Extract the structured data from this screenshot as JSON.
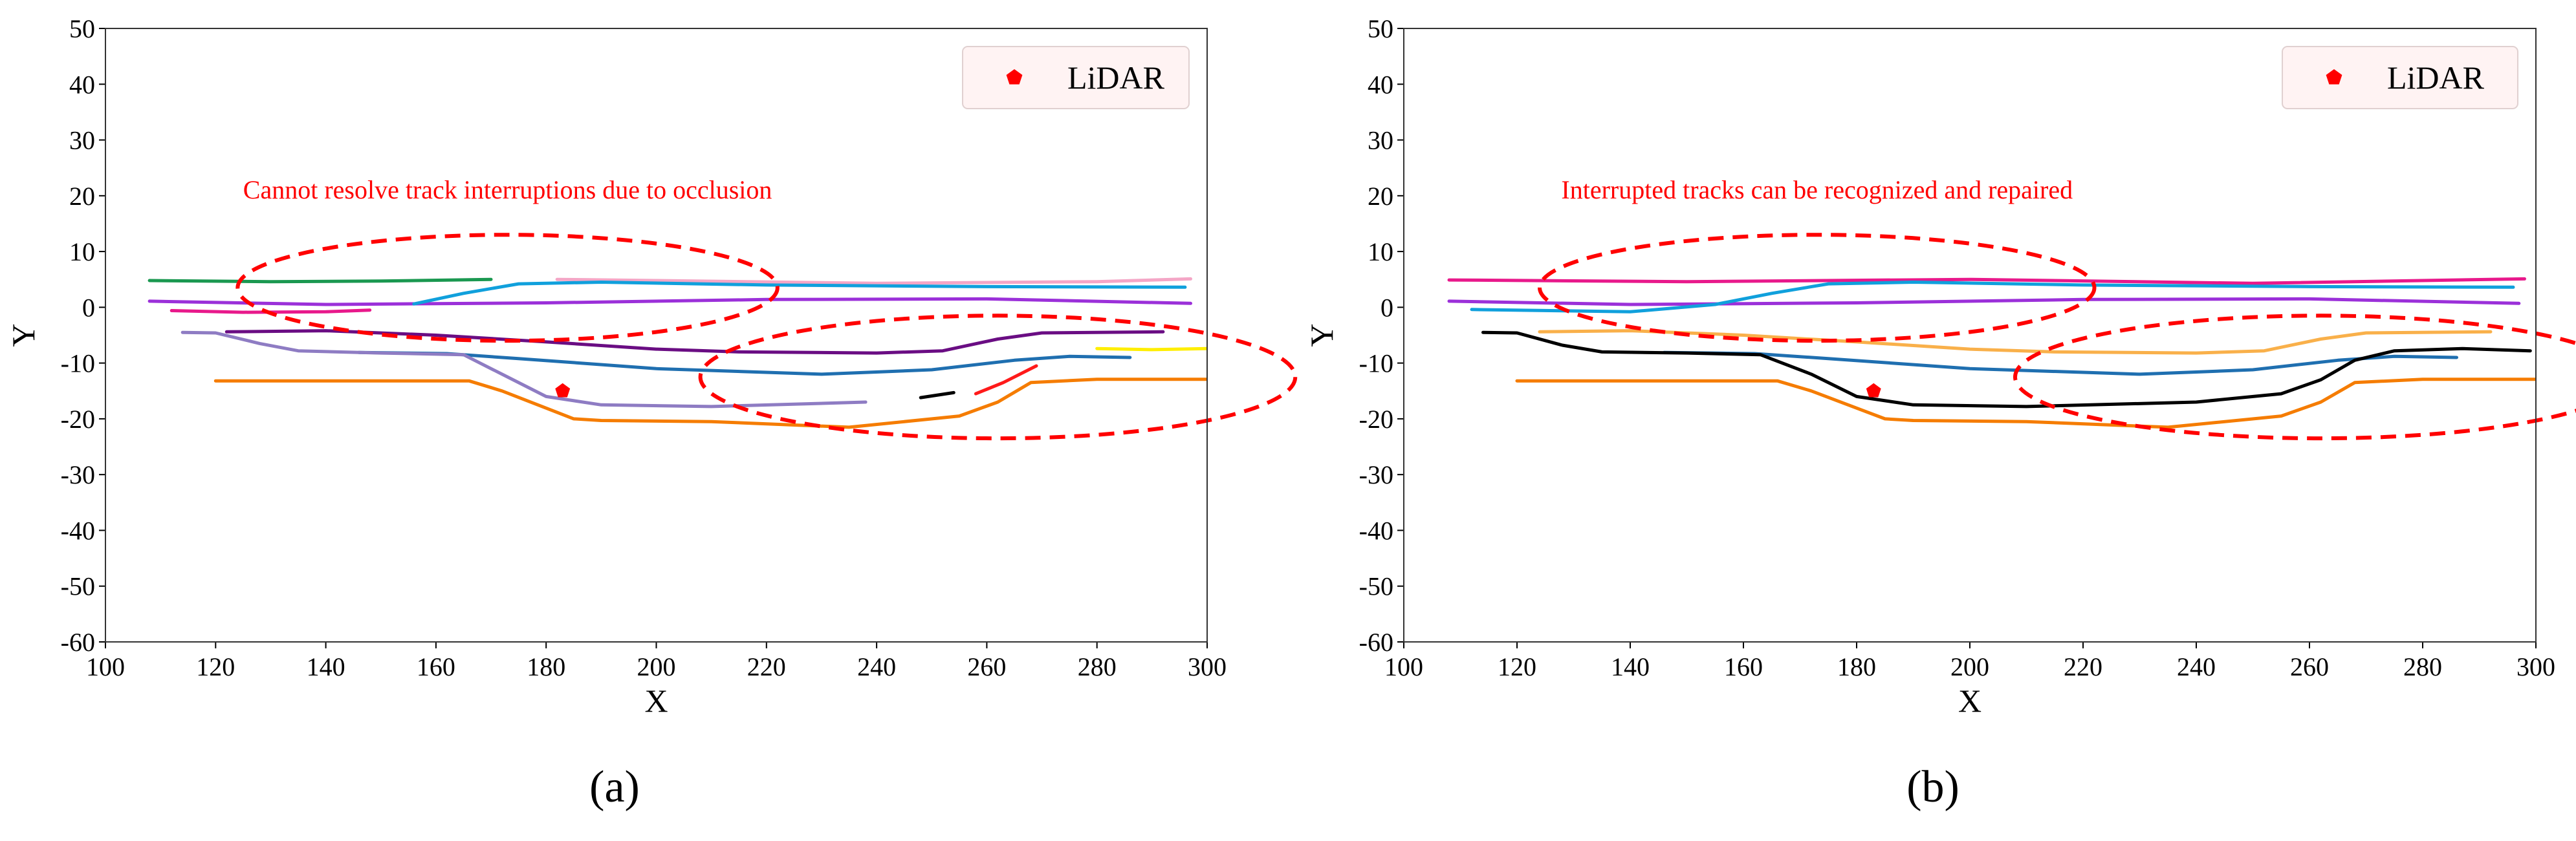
{
  "chart_data": [
    {
      "type": "line",
      "panel_label": "(a)",
      "xlabel": "X",
      "ylabel": "Y",
      "xlim": [
        100,
        300
      ],
      "ylim": [
        -60,
        50
      ],
      "xticks": [
        100,
        120,
        140,
        160,
        180,
        200,
        220,
        240,
        260,
        280,
        300
      ],
      "yticks": [
        50,
        40,
        30,
        20,
        10,
        0,
        -10,
        -20,
        -30,
        -40,
        -50,
        -60
      ],
      "legend": {
        "label": "LiDAR",
        "marker": "pentagon",
        "color": "#ff0000",
        "placement": "top-right"
      },
      "annotation": {
        "text": "Cannot resolve track interruptions due to occlusion",
        "color": "#ff0000",
        "x": 173,
        "y": 19.5
      },
      "lidar": {
        "x": 183,
        "y": -15
      },
      "ellipses": [
        {
          "cx": 173,
          "cy": 3.5,
          "rx": 49,
          "ry": 9.5,
          "color": "#ff0000"
        },
        {
          "cx": 262,
          "cy": -12.5,
          "rx": 54,
          "ry": 11,
          "color": "#ff0000"
        }
      ],
      "series": [
        {
          "name": "green",
          "color": "#1a9850",
          "x": [
            108,
            130,
            150,
            170
          ],
          "y": [
            4.8,
            4.6,
            4.7,
            5.0
          ]
        },
        {
          "name": "magenta-short",
          "color": "#e8198b",
          "x": [
            112,
            125,
            140,
            148
          ],
          "y": [
            -0.6,
            -0.9,
            -0.8,
            -0.5
          ]
        },
        {
          "name": "violet-long",
          "color": "#9b30d9",
          "x": [
            108,
            140,
            180,
            220,
            260,
            297
          ],
          "y": [
            1.1,
            0.5,
            0.8,
            1.4,
            1.5,
            0.7
          ]
        },
        {
          "name": "pink",
          "color": "#f4a6c6",
          "x": [
            182,
            200,
            240,
            280,
            297
          ],
          "y": [
            5.0,
            4.8,
            4.3,
            4.6,
            5.1
          ]
        },
        {
          "name": "cyan",
          "color": "#10a0dc",
          "x": [
            156,
            165,
            175,
            190,
            220,
            260,
            296
          ],
          "y": [
            0.6,
            2.5,
            4.2,
            4.5,
            4.0,
            3.7,
            3.6
          ]
        },
        {
          "name": "purple",
          "color": "#6a0d83",
          "x": [
            122,
            140,
            160,
            180,
            200,
            215,
            240,
            252,
            262,
            270,
            292
          ],
          "y": [
            -4.4,
            -4.2,
            -5.0,
            -6.2,
            -7.5,
            -8.0,
            -8.2,
            -7.8,
            -5.7,
            -4.6,
            -4.4
          ]
        },
        {
          "name": "blue",
          "color": "#1f6fb0",
          "x": [
            146,
            162,
            175,
            200,
            230,
            250,
            265,
            275,
            286
          ],
          "y": [
            -8.1,
            -8.3,
            -9.2,
            -11.0,
            -12.0,
            -11.2,
            -9.5,
            -8.8,
            -9.0
          ]
        },
        {
          "name": "lavender",
          "color": "#8e7cc3",
          "x": [
            114,
            120,
            128,
            135,
            150,
            165,
            172,
            180,
            190,
            210,
            238
          ],
          "y": [
            -4.5,
            -4.6,
            -6.5,
            -7.8,
            -8.2,
            -8.5,
            -12.0,
            -16.0,
            -17.5,
            -17.8,
            -17.0
          ]
        },
        {
          "name": "orange",
          "color": "#f57c00",
          "x": [
            120,
            150,
            166,
            172,
            185,
            190,
            210,
            235,
            255,
            262,
            268,
            280,
            300
          ],
          "y": [
            -13.2,
            -13.2,
            -13.2,
            -15.0,
            -20.0,
            -20.3,
            -20.5,
            -21.5,
            -19.5,
            -17.0,
            -13.5,
            -12.9,
            -12.9
          ]
        },
        {
          "name": "black-fragment",
          "color": "#000000",
          "x": [
            248,
            254
          ],
          "y": [
            -16.2,
            -15.3
          ]
        },
        {
          "name": "red-fragment",
          "color": "#ff1a1a",
          "x": [
            258,
            263,
            269
          ],
          "y": [
            -15.5,
            -13.5,
            -10.5
          ]
        },
        {
          "name": "yellow",
          "color": "#ffee00",
          "x": [
            280,
            290,
            300
          ],
          "y": [
            -7.4,
            -7.6,
            -7.4
          ]
        }
      ]
    },
    {
      "type": "line",
      "panel_label": "(b)",
      "xlabel": "X",
      "ylabel": "Y",
      "xlim": [
        100,
        300
      ],
      "ylim": [
        -60,
        50
      ],
      "xticks": [
        100,
        120,
        140,
        160,
        180,
        200,
        220,
        240,
        260,
        280,
        300
      ],
      "yticks": [
        50,
        40,
        30,
        20,
        10,
        0,
        -10,
        -20,
        -30,
        -40,
        -50,
        -60
      ],
      "legend": {
        "label": "LiDAR",
        "marker": "pentagon",
        "color": "#ff0000",
        "placement": "top-right"
      },
      "annotation": {
        "text": "Interrupted tracks can be recognized and repaired",
        "color": "#ff0000",
        "x": 173,
        "y": 19.5
      },
      "lidar": {
        "x": 183,
        "y": -15
      },
      "ellipses": [
        {
          "cx": 173,
          "cy": 3.5,
          "rx": 49,
          "ry": 9.5,
          "color": "#ff0000"
        },
        {
          "cx": 262,
          "cy": -12.5,
          "rx": 54,
          "ry": 11,
          "color": "#ff0000"
        }
      ],
      "series": [
        {
          "name": "magenta",
          "color": "#e8198b",
          "x": [
            108,
            150,
            200,
            250,
            298
          ],
          "y": [
            4.9,
            4.6,
            5.0,
            4.3,
            5.1
          ]
        },
        {
          "name": "violet-long",
          "color": "#9b30d9",
          "x": [
            108,
            140,
            180,
            220,
            260,
            297
          ],
          "y": [
            1.1,
            0.5,
            0.8,
            1.4,
            1.5,
            0.7
          ]
        },
        {
          "name": "cyan",
          "color": "#10a0dc",
          "x": [
            112,
            140,
            155,
            165,
            175,
            190,
            220,
            260,
            296
          ],
          "y": [
            -0.4,
            -0.8,
            0.5,
            2.5,
            4.2,
            4.5,
            4.0,
            3.7,
            3.6
          ]
        },
        {
          "name": "light-orange",
          "color": "#f9b04a",
          "x": [
            124,
            140,
            160,
            180,
            200,
            215,
            240,
            252,
            262,
            270,
            292
          ],
          "y": [
            -4.4,
            -4.2,
            -5.0,
            -6.2,
            -7.5,
            -8.0,
            -8.2,
            -7.8,
            -5.7,
            -4.6,
            -4.4
          ]
        },
        {
          "name": "blue",
          "color": "#1f6fb0",
          "x": [
            146,
            162,
            175,
            200,
            230,
            250,
            265,
            275,
            286
          ],
          "y": [
            -8.1,
            -8.3,
            -9.2,
            -11.0,
            -12.0,
            -11.2,
            -9.5,
            -8.8,
            -9.0
          ]
        },
        {
          "name": "orange",
          "color": "#f57c00",
          "x": [
            120,
            150,
            166,
            172,
            185,
            190,
            210,
            235,
            255,
            262,
            268,
            280,
            300
          ],
          "y": [
            -13.2,
            -13.2,
            -13.2,
            -15.0,
            -20.0,
            -20.3,
            -20.5,
            -21.5,
            -19.5,
            -17.0,
            -13.5,
            -12.9,
            -12.9
          ]
        },
        {
          "name": "black-repaired",
          "color": "#000000",
          "x": [
            114,
            120,
            128,
            135,
            150,
            163,
            172,
            180,
            190,
            210,
            240,
            255,
            262,
            268,
            275,
            287,
            299
          ],
          "y": [
            -4.5,
            -4.6,
            -6.8,
            -8.0,
            -8.2,
            -8.5,
            -12.0,
            -16.0,
            -17.5,
            -17.8,
            -17.0,
            -15.5,
            -13.0,
            -9.5,
            -7.8,
            -7.4,
            -7.8
          ]
        }
      ]
    }
  ]
}
